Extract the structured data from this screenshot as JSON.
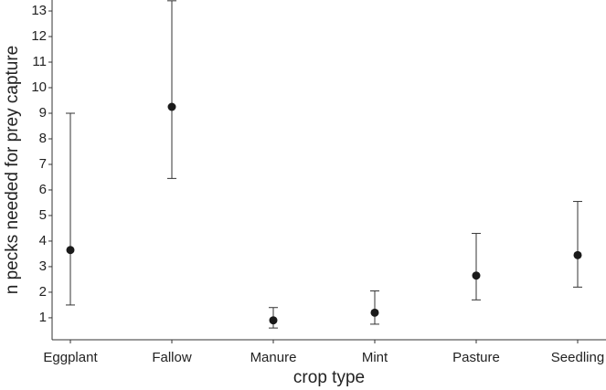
{
  "chart_data": {
    "type": "errorbar",
    "x_label": "crop type",
    "y_label": "n pecks needed for prey capture",
    "categories": [
      "Eggplant",
      "Fallow",
      "Manure",
      "Mint",
      "Pasture",
      "Seedling"
    ],
    "values": [
      3.65,
      9.25,
      0.9,
      1.2,
      2.65,
      3.45
    ],
    "lower": [
      1.5,
      6.45,
      0.6,
      0.75,
      1.7,
      2.2
    ],
    "upper": [
      9.0,
      13.4,
      1.4,
      2.05,
      4.3,
      5.55
    ],
    "color": "#1a1a1a",
    "ylim": [
      0.14,
      13.43
    ],
    "yticks": [
      1,
      2,
      3,
      4,
      5,
      6,
      7,
      8,
      9,
      10,
      11,
      12,
      13
    ],
    "grid": false
  }
}
